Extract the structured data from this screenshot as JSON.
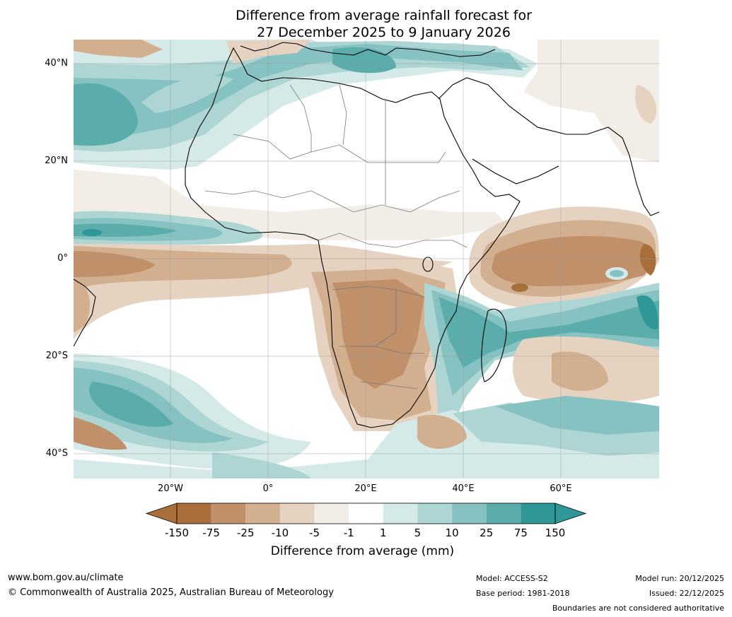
{
  "title": {
    "line1": "Difference from average rainfall forecast for",
    "line2": "27 December 2025 to 9 January 2026"
  },
  "axes": {
    "lat_labels": [
      "40°N",
      "20°N",
      "0°",
      "20°S",
      "40°S"
    ],
    "lon_labels": [
      "20°W",
      "0°",
      "20°E",
      "40°E",
      "60°E"
    ]
  },
  "colorbar": {
    "ticks": [
      "-150",
      "-75",
      "-25",
      "-10",
      "-5",
      "-1",
      "1",
      "5",
      "10",
      "25",
      "75",
      "150"
    ],
    "colors": [
      "#a86f3b",
      "#c0906a",
      "#d2b08f",
      "#e5d2c0",
      "#f2ede6",
      "#ffffff",
      "#d5e9e8",
      "#acd5d4",
      "#86c2c1",
      "#5badab",
      "#2f9896",
      "#2f9896"
    ],
    "under_color": "#a86f3b",
    "over_color": "#2f9896",
    "label": "Difference from average (mm)"
  },
  "footer": {
    "website": "www.bom.gov.au/climate",
    "copyright": "© Commonwealth of Australia 2025, Australian Bureau of Meteorology",
    "model": "Model: ACCESS-S2",
    "base_period": "Base period: 1981-2018",
    "model_run": "Model run: 20/12/2025",
    "issued": "Issued: 22/12/2025",
    "disclaimer": "Boundaries are not considered authoritative"
  }
}
